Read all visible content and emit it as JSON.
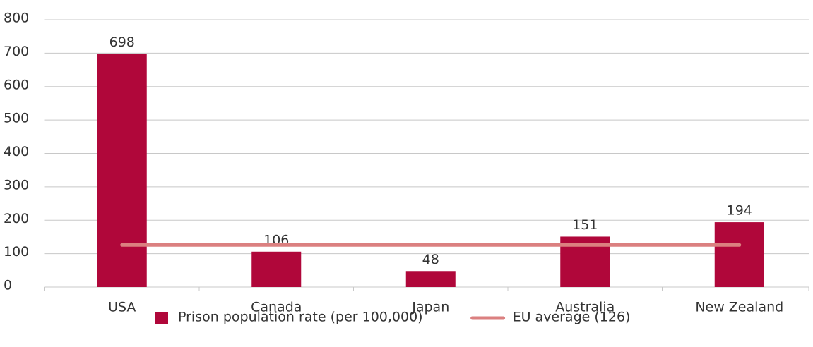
{
  "chart_data": {
    "type": "bar",
    "categories": [
      "USA",
      "Canada",
      "Japan",
      "Australia",
      "New Zealand"
    ],
    "series": [
      {
        "name": "Prison population rate (per 100,000)",
        "type": "bar",
        "color": "#b0073a",
        "values": [
          698,
          106,
          48,
          151,
          194
        ]
      },
      {
        "name": "EU average (126)",
        "type": "line",
        "color": "#db8080",
        "values": [
          126,
          126,
          126,
          126,
          126
        ]
      }
    ],
    "ylim": [
      0,
      800
    ],
    "yticks": [
      0,
      100,
      200,
      300,
      400,
      500,
      600,
      700,
      800
    ],
    "grid": true,
    "legend": "bottom"
  }
}
